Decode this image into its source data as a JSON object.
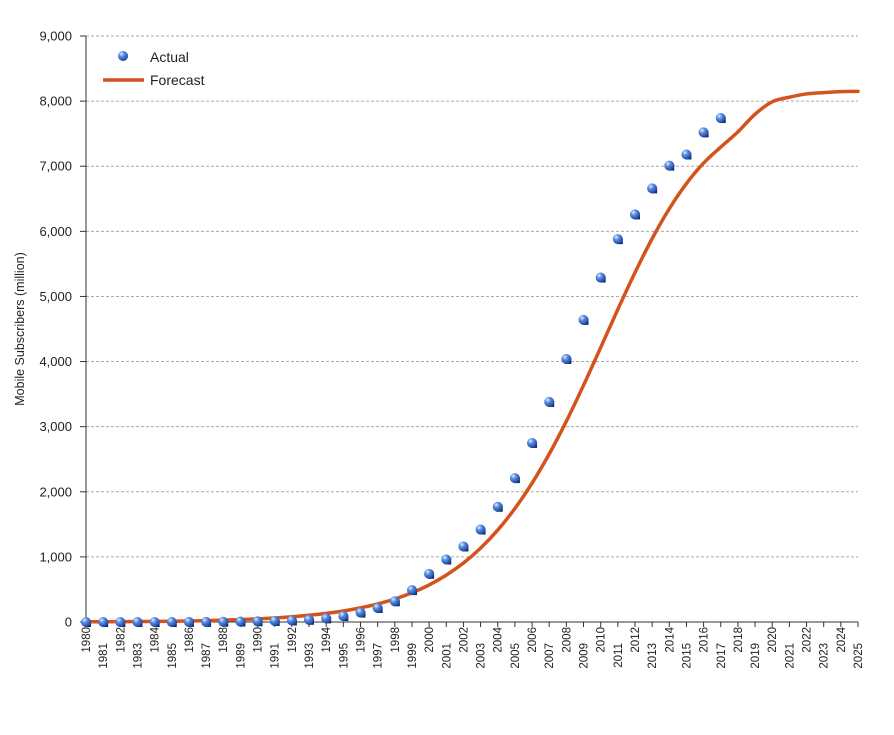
{
  "chart_data": {
    "type": "line",
    "title": "",
    "xlabel": "",
    "ylabel": "Mobile Subscribers (million)",
    "ylim": [
      0,
      9000
    ],
    "xlim": [
      1980,
      2025
    ],
    "grid": true,
    "legend_position": "top-left",
    "y_ticks": [
      0,
      1000,
      2000,
      3000,
      4000,
      5000,
      6000,
      7000,
      8000,
      9000
    ],
    "y_tick_labels": [
      "0",
      "1,000",
      "2,000",
      "3,000",
      "4,000",
      "5,000",
      "6,000",
      "7,000",
      "8,000",
      "9,000"
    ],
    "x_ticks": [
      1980,
      1981,
      1982,
      1983,
      1984,
      1985,
      1986,
      1987,
      1988,
      1989,
      1990,
      1991,
      1992,
      1993,
      1994,
      1995,
      1996,
      1997,
      1998,
      1999,
      2000,
      2001,
      2002,
      2003,
      2004,
      2005,
      2006,
      2007,
      2008,
      2009,
      2010,
      2011,
      2012,
      2013,
      2014,
      2015,
      2016,
      2017,
      2018,
      2019,
      2020,
      2021,
      2022,
      2023,
      2024,
      2025
    ],
    "series": [
      {
        "name": "Actual",
        "kind": "scatter",
        "color": "#2f5fc4",
        "x": [
          1980,
          1981,
          1982,
          1983,
          1984,
          1985,
          1986,
          1987,
          1988,
          1989,
          1990,
          1991,
          1992,
          1993,
          1994,
          1995,
          1996,
          1997,
          1998,
          1999,
          2000,
          2001,
          2002,
          2003,
          2004,
          2005,
          2006,
          2007,
          2008,
          2009,
          2010,
          2011,
          2012,
          2013,
          2014,
          2015,
          2016,
          2017
        ],
        "y": [
          0,
          0,
          0,
          0,
          0,
          0,
          1,
          2,
          4,
          7,
          11,
          16,
          23,
          34,
          56,
          91,
          145,
          215,
          318,
          490,
          740,
          960,
          1160,
          1420,
          1770,
          2210,
          2750,
          3380,
          4040,
          4640,
          5290,
          5880,
          6260,
          6660,
          7010,
          7180,
          7520,
          7740
        ]
      },
      {
        "name": "Forecast",
        "kind": "line",
        "color": "#d4521c",
        "x": [
          1980,
          1981,
          1982,
          1983,
          1984,
          1985,
          1986,
          1987,
          1988,
          1989,
          1990,
          1991,
          1992,
          1993,
          1994,
          1995,
          1996,
          1997,
          1998,
          1999,
          2000,
          2001,
          2002,
          2003,
          2004,
          2005,
          2006,
          2007,
          2008,
          2009,
          2010,
          2011,
          2012,
          2013,
          2014,
          2015,
          2016,
          2017,
          2018,
          2019,
          2020,
          2021,
          2022,
          2023,
          2024,
          2025
        ],
        "y": [
          3,
          4,
          5,
          7,
          9,
          12,
          16,
          21,
          28,
          37,
          48,
          62,
          80,
          103,
          132,
          169,
          217,
          277,
          353,
          449,
          569,
          720,
          906,
          1135,
          1412,
          1743,
          2132,
          2580,
          3084,
          3635,
          4215,
          4801,
          5366,
          5888,
          6347,
          6734,
          7048,
          7294,
          7528,
          7800,
          7990,
          8060,
          8110,
          8130,
          8145,
          8150
        ]
      }
    ]
  }
}
